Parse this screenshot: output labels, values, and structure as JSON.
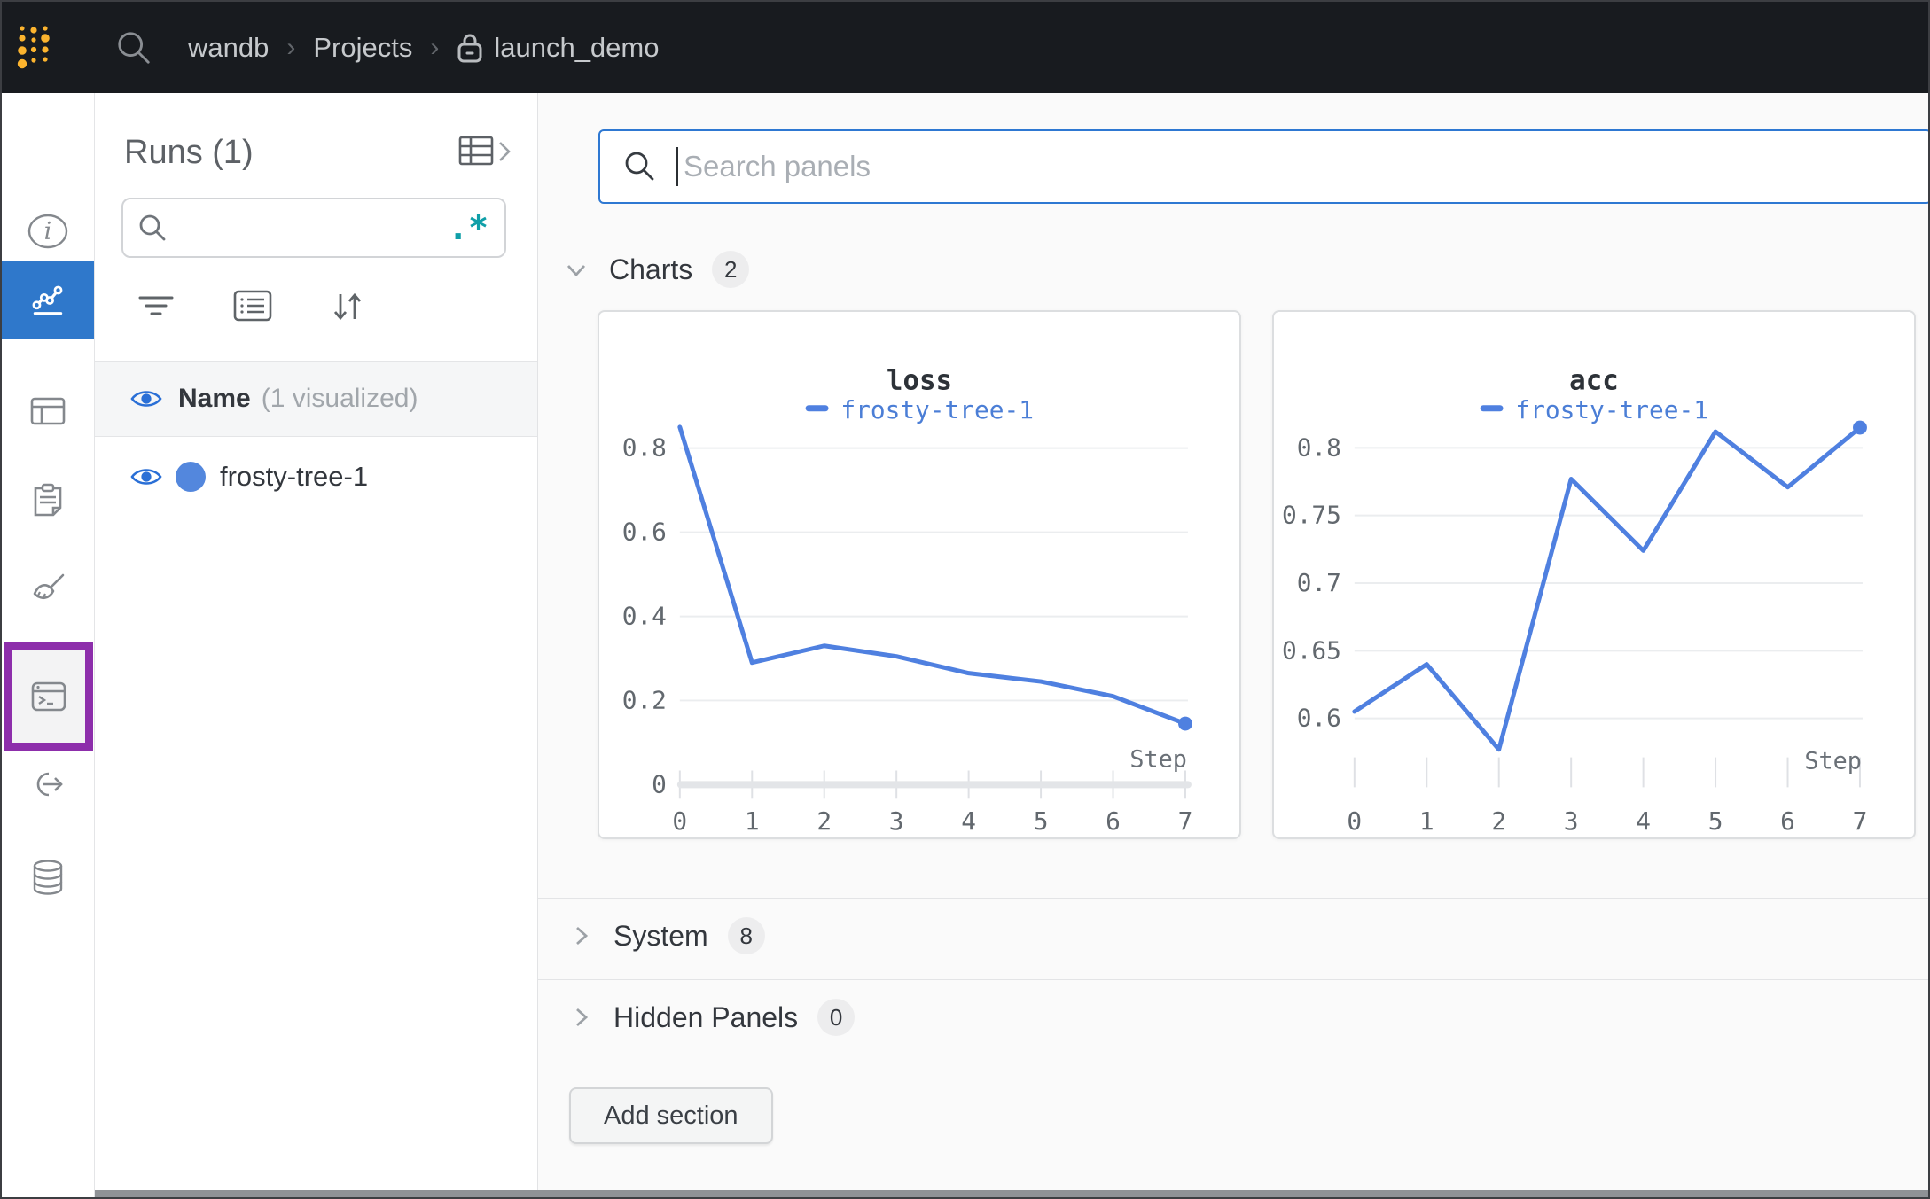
{
  "colors": {
    "topbar_bg": "#181b1f",
    "accent_blue": "#2f78cb",
    "purple_highlight": "#8d2eab",
    "run_color": "#5387dd",
    "line_blue": "#4f80e0",
    "teal_regex": "#0f9fa8",
    "main_bg": "#fafafa"
  },
  "topbar": {
    "logo_icon": "wandb-dots-logo",
    "search_icon": "search-icon",
    "breadcrumb": {
      "items": [
        "wandb",
        "Projects",
        "launch_demo"
      ],
      "separator": "›",
      "lock_icon": "lock-icon"
    }
  },
  "sidebar": {
    "items": [
      {
        "name": "overview",
        "icon": "info-icon",
        "active": false
      },
      {
        "name": "workspace",
        "icon": "line-chart-icon",
        "active": true
      },
      {
        "name": "runs-table",
        "icon": "table-icon",
        "active": false
      },
      {
        "name": "reports",
        "icon": "clipboard-icon",
        "active": false
      },
      {
        "name": "sweeps",
        "icon": "broom-icon",
        "active": false
      },
      {
        "name": "jobs",
        "icon": "terminal-window-icon",
        "active": false,
        "highlighted": true
      },
      {
        "name": "automations",
        "icon": "link-arrow-icon",
        "active": false
      },
      {
        "name": "artifacts",
        "icon": "database-icon",
        "active": false
      }
    ],
    "tooltip": {
      "label": "Jobs"
    }
  },
  "runs_panel": {
    "title": "Runs (1)",
    "search_placeholder": "",
    "regex_icon_text": ".*",
    "header_row": {
      "name_label": "Name",
      "visualized_label": "(1 visualized)"
    },
    "runs": [
      {
        "name": "frosty-tree-1",
        "color": "#5387dd",
        "visible": true
      }
    ]
  },
  "main": {
    "search": {
      "placeholder": "Search panels"
    },
    "sections": [
      {
        "label": "Charts",
        "count": "2",
        "expanded": true
      },
      {
        "label": "System",
        "count": "8",
        "expanded": false
      },
      {
        "label": "Hidden Panels",
        "count": "0",
        "expanded": false
      }
    ],
    "add_section_label": "Add section"
  },
  "chart_data": [
    {
      "type": "line",
      "title": "loss",
      "xlabel": "Step",
      "x": [
        0,
        1,
        2,
        3,
        4,
        5,
        6,
        7
      ],
      "xticklabels": [
        "0",
        "1",
        "2",
        "3",
        "4",
        "5",
        "6",
        "7"
      ],
      "series": [
        {
          "name": "frosty-tree-1",
          "values": [
            0.85,
            0.29,
            0.33,
            0.305,
            0.265,
            0.245,
            0.21,
            0.145
          ]
        }
      ],
      "yticks": [
        0,
        0.2,
        0.4,
        0.6,
        0.8
      ],
      "ylim": [
        0,
        0.881
      ],
      "zero_axis": true,
      "grid": true,
      "legend_position": "top",
      "line_color": "#4f80e0"
    },
    {
      "type": "line",
      "title": "acc",
      "xlabel": "Step",
      "x": [
        0,
        1,
        2,
        3,
        4,
        5,
        6,
        7
      ],
      "xticklabels": [
        "0",
        "1",
        "2",
        "3",
        "4",
        "5",
        "6",
        "7"
      ],
      "series": [
        {
          "name": "frosty-tree-1",
          "values": [
            0.605,
            0.64,
            0.577,
            0.777,
            0.724,
            0.812,
            0.771,
            0.815
          ]
        }
      ],
      "yticks": [
        0.6,
        0.65,
        0.7,
        0.75,
        0.8
      ],
      "ylim": [
        0.551,
        0.825
      ],
      "zero_axis": false,
      "grid": true,
      "legend_position": "top",
      "line_color": "#4f80e0"
    }
  ]
}
